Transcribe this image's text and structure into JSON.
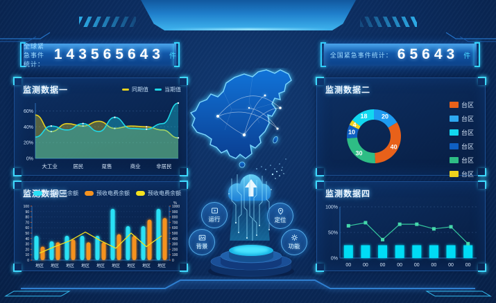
{
  "header": {
    "left_counter": {
      "label": "全球紧急事件统计：",
      "value": "143565643",
      "unit": "件"
    },
    "right_counter": {
      "label": "全国紧急事件统计：",
      "value": "65643",
      "unit": "件"
    }
  },
  "panels": {
    "p1": {
      "title": "监测数据一"
    },
    "p2": {
      "title": "监测数据二"
    },
    "p3": {
      "title": "监测数据三"
    },
    "p4": {
      "title": "监测数据四"
    }
  },
  "center": {
    "buttons": [
      {
        "label": "运行"
      },
      {
        "label": "定位"
      },
      {
        "label": "背景"
      },
      {
        "label": "功能"
      }
    ]
  },
  "colors": {
    "accent_cyan": "#35d8ff",
    "accent_yellow": "#f0d41e",
    "accent_orange": "#f5921e",
    "panel_border": "#1c4f93"
  },
  "chart_data": [
    {
      "id": "monitor1",
      "type": "area",
      "title": "监测数据一",
      "legend": [
        {
          "name": "同期值",
          "color": "#e8d21f"
        },
        {
          "name": "当期值",
          "color": "#1fd8e8"
        }
      ],
      "categories": [
        "大工业",
        "居民",
        "趸售",
        "商业",
        "非居民"
      ],
      "y_tick_vals": [
        0,
        20,
        40,
        60
      ],
      "y_tick_labels": [
        "0%",
        "20%",
        "40%",
        "60%"
      ],
      "ylim": [
        0,
        70
      ],
      "series": [
        {
          "name": "同期值",
          "color": "#e8d21f",
          "values": [
            55,
            34,
            44,
            41,
            47,
            38,
            41,
            40,
            36,
            26
          ]
        },
        {
          "name": "当期值",
          "color": "#1fd8e8",
          "values": [
            27,
            41,
            36,
            44,
            34,
            52,
            38,
            37,
            44,
            70
          ]
        }
      ]
    },
    {
      "id": "monitor2",
      "type": "donut",
      "title": "监测数据二",
      "slices": [
        {
          "value": 20,
          "color": "#1e9bf0"
        },
        {
          "value": 40,
          "color": "#e8611a"
        },
        {
          "value": 30,
          "color": "#2ebd85"
        },
        {
          "value": 10,
          "color": "#0f5fc2"
        },
        {
          "value": 4,
          "color": "#f0d41e"
        },
        {
          "value": 18,
          "color": "#12d8f0"
        }
      ],
      "legend": [
        {
          "name": "台区",
          "color": "#e8611a"
        },
        {
          "name": "台区",
          "color": "#2da8f0"
        },
        {
          "name": "台区",
          "color": "#12d8f0"
        },
        {
          "name": "台区",
          "color": "#0f5fc2"
        },
        {
          "name": "台区",
          "color": "#2ebd85"
        },
        {
          "name": "台区",
          "color": "#f0d41e"
        }
      ]
    },
    {
      "id": "monitor3",
      "type": "bar-line",
      "title": "监测数据三",
      "legend": [
        {
          "name": "预收电费余额",
          "color": "#29e0f5"
        },
        {
          "name": "预收电费余额",
          "color": "#f5921e"
        },
        {
          "name": "预收电费余额",
          "color": "#f5e11e"
        }
      ],
      "categories": [
        "地区",
        "地区",
        "地区",
        "地区",
        "地区",
        "地区",
        "地区",
        "地区",
        "地区"
      ],
      "left_ticks": [
        0,
        10,
        20,
        30,
        40,
        50,
        60,
        70,
        80,
        90,
        100
      ],
      "right_ticks": [
        0,
        100,
        200,
        300,
        400,
        500,
        600,
        700,
        800,
        900,
        1000
      ],
      "right_axis_unit": "%",
      "ylim": [
        0,
        100
      ],
      "series": [
        {
          "name": "预收电费余额",
          "type": "bar",
          "color": "#29e0f5",
          "values": [
            45,
            35,
            45,
            45,
            45,
            95,
            63,
            63,
            95
          ]
        },
        {
          "name": "预收电费余额",
          "type": "bar",
          "color": "#f5921e",
          "values": [
            25,
            33,
            38,
            33,
            33,
            48,
            45,
            75,
            78
          ]
        },
        {
          "name": "预收电费余额",
          "type": "line",
          "color": "#f5e11e",
          "values": [
            13,
            25,
            36,
            52,
            36,
            22,
            50,
            25,
            45
          ]
        }
      ]
    },
    {
      "id": "monitor4",
      "type": "bar-line",
      "title": "监测数据四",
      "categories": [
        "00",
        "00",
        "00",
        "00",
        "00",
        "00",
        "00",
        "00"
      ],
      "y_tick_vals": [
        0,
        50,
        100
      ],
      "y_tick_labels": [
        "0%",
        "50%",
        "100%"
      ],
      "ylim": [
        0,
        100
      ],
      "series": [
        {
          "name": "bar",
          "type": "bar",
          "color": "#00dcf5",
          "values": [
            25,
            25,
            25,
            25,
            25,
            25,
            25,
            25
          ]
        },
        {
          "name": "line",
          "type": "line",
          "color": "#35c79e",
          "marker": "square",
          "values": [
            63,
            69,
            36,
            66,
            66,
            57,
            61,
            28
          ]
        }
      ]
    }
  ]
}
